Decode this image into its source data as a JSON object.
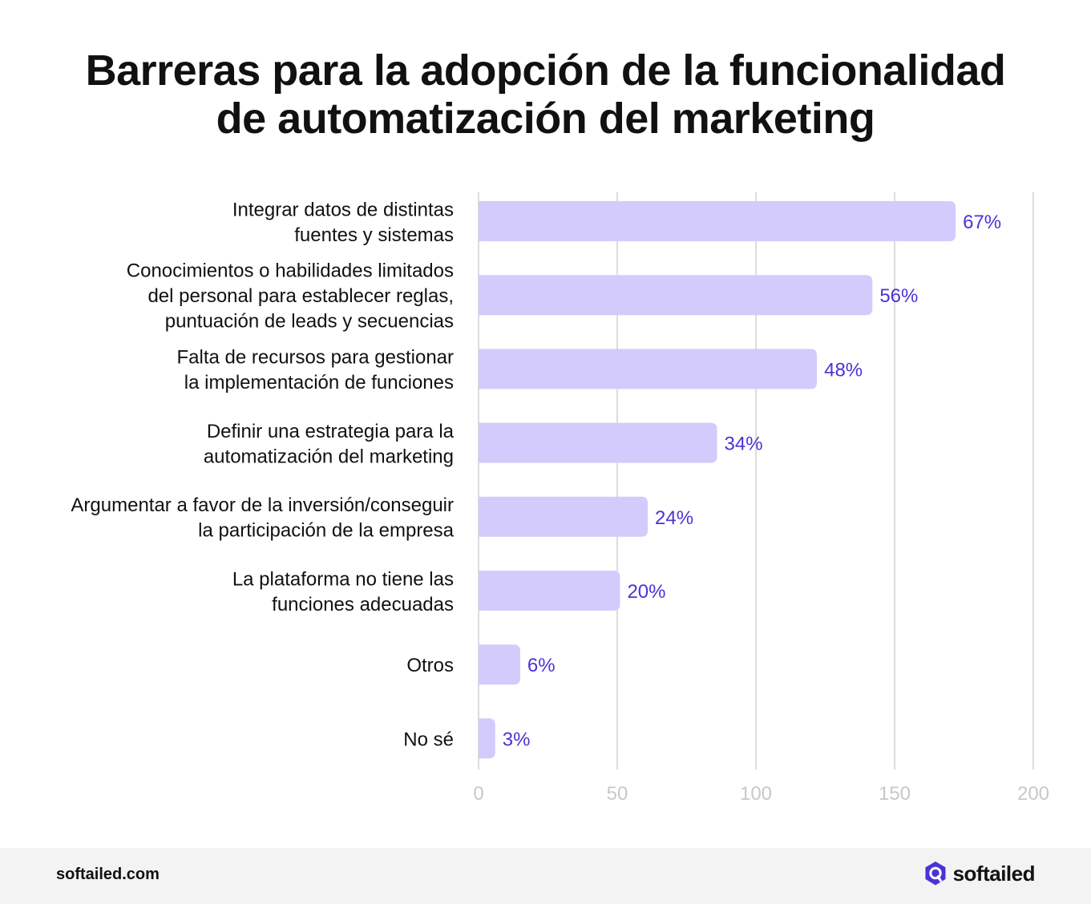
{
  "title_lines": [
    "Barreras para la adopción de la funcionalidad",
    "de automatización del marketing"
  ],
  "chart_data": {
    "type": "bar",
    "orientation": "horizontal",
    "categories": [
      [
        "Integrar datos de distintas",
        "fuentes y sistemas"
      ],
      [
        "Conocimientos o habilidades limitados",
        "del personal para establecer reglas,",
        "puntuación de leads y secuencias"
      ],
      [
        "Falta de recursos para gestionar",
        "la implementación de funciones"
      ],
      [
        "Definir una estrategia para la",
        "automatización del marketing"
      ],
      [
        "Argumentar a favor de la inversión/conseguir",
        "la participación de la empresa"
      ],
      [
        "La plataforma no tiene las",
        "funciones adecuadas"
      ],
      [
        "Otros"
      ],
      [
        "No sé"
      ]
    ],
    "values": [
      172,
      142,
      122,
      86,
      61,
      51,
      15,
      6
    ],
    "data_labels": [
      "67%",
      "56%",
      "48%",
      "34%",
      "24%",
      "20%",
      "6%",
      "3%"
    ],
    "xlim": [
      0,
      200
    ],
    "x_ticks": [
      0,
      50,
      100,
      150,
      200
    ],
    "grid": true,
    "colors": {
      "bar": "#d3cbfb",
      "data_label": "#4a33d6",
      "grid": "#dcdcdc",
      "tick": "#c8c8c8",
      "category_label": "#111111"
    }
  },
  "footer": {
    "url": "softailed.com",
    "brand_name": "softailed",
    "brand_icon": "softailed-logo-icon"
  }
}
